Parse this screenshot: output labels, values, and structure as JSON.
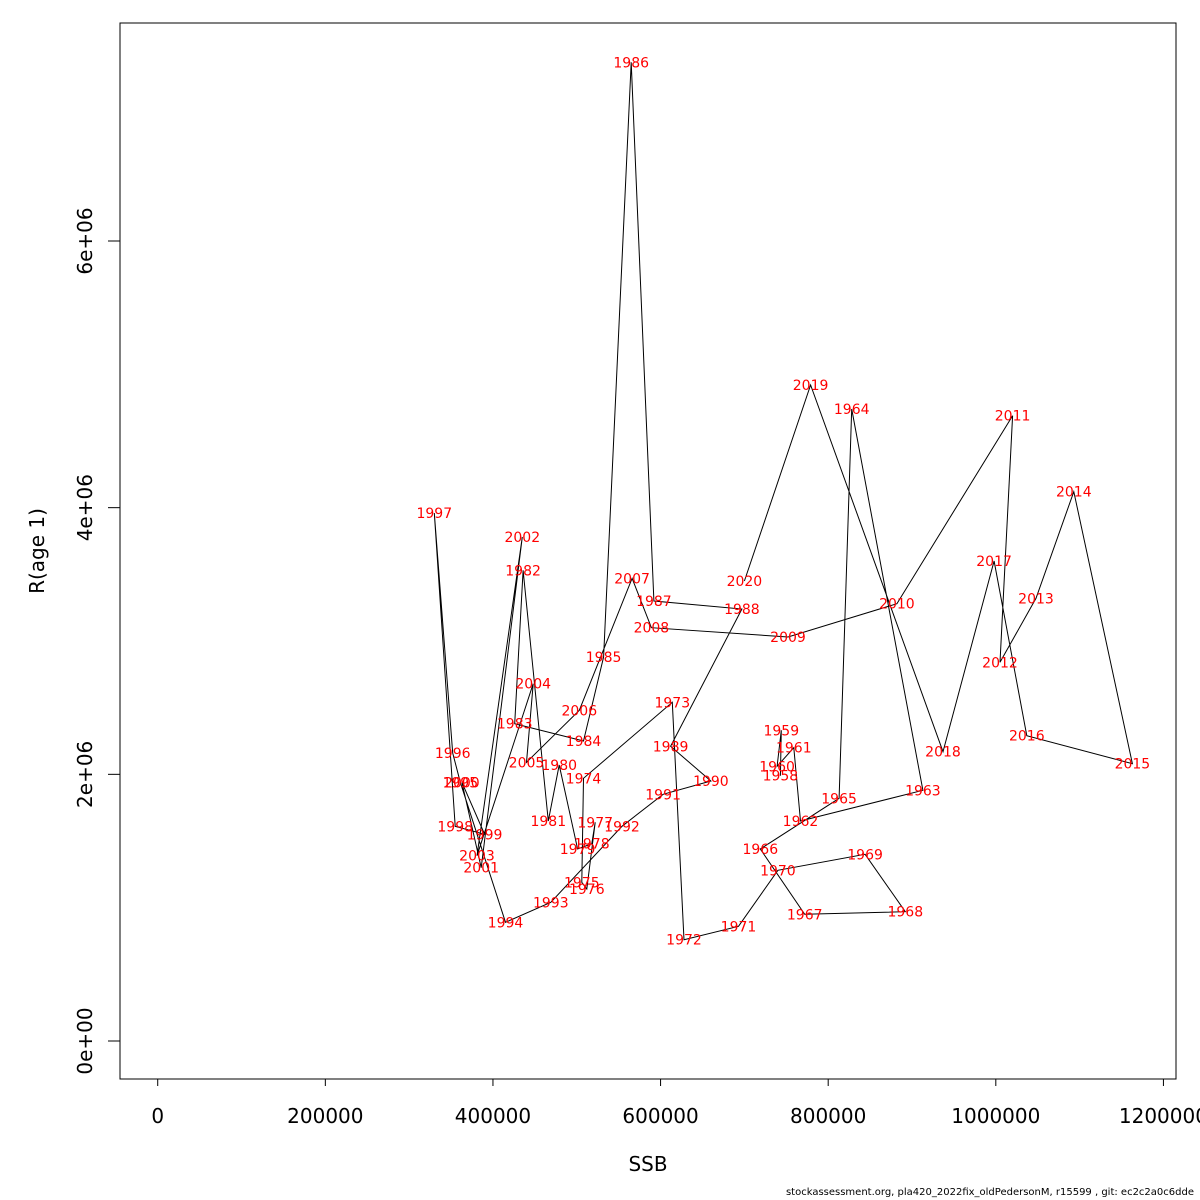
{
  "chart_data": {
    "type": "line",
    "title": "",
    "xlabel": "SSB",
    "ylabel": "R(age 1)",
    "xlim": [
      -45000,
      1215000
    ],
    "ylim": [
      -285000,
      7635000
    ],
    "x_ticks": [
      {
        "value": 0,
        "label": "0"
      },
      {
        "value": 200000,
        "label": "200000"
      },
      {
        "value": 400000,
        "label": "400000"
      },
      {
        "value": 600000,
        "label": "600000"
      },
      {
        "value": 800000,
        "label": "800000"
      },
      {
        "value": 1000000,
        "label": "1000000"
      },
      {
        "value": 1200000,
        "label": "1200000"
      }
    ],
    "y_ticks": [
      {
        "value": 0,
        "label": "0e+00"
      },
      {
        "value": 2000000,
        "label": "2e+06"
      },
      {
        "value": 4000000,
        "label": "4e+06"
      },
      {
        "value": 6000000,
        "label": "6e+06"
      }
    ],
    "grid": false,
    "legend": "none",
    "line_color": "#000000",
    "label_color": "#ff0000",
    "points": [
      {
        "label": "1958",
        "x": 743000,
        "y": 1990000
      },
      {
        "label": "1959",
        "x": 744000,
        "y": 2330000
      },
      {
        "label": "1960",
        "x": 739000,
        "y": 2060000
      },
      {
        "label": "1961",
        "x": 759000,
        "y": 2200000
      },
      {
        "label": "1962",
        "x": 767000,
        "y": 1650000
      },
      {
        "label": "1963",
        "x": 913000,
        "y": 1880000
      },
      {
        "label": "1964",
        "x": 828000,
        "y": 4740000
      },
      {
        "label": "1965",
        "x": 813000,
        "y": 1820000
      },
      {
        "label": "1966",
        "x": 719000,
        "y": 1440000
      },
      {
        "label": "1967",
        "x": 772000,
        "y": 950000
      },
      {
        "label": "1968",
        "x": 892000,
        "y": 970000
      },
      {
        "label": "1969",
        "x": 844000,
        "y": 1400000
      },
      {
        "label": "1970",
        "x": 740000,
        "y": 1280000
      },
      {
        "label": "1971",
        "x": 693000,
        "y": 860000
      },
      {
        "label": "1972",
        "x": 628000,
        "y": 760000
      },
      {
        "label": "1973",
        "x": 614000,
        "y": 2540000
      },
      {
        "label": "1974",
        "x": 508000,
        "y": 1970000
      },
      {
        "label": "1975",
        "x": 506000,
        "y": 1190000
      },
      {
        "label": "1976",
        "x": 512000,
        "y": 1140000
      },
      {
        "label": "1977",
        "x": 522000,
        "y": 1640000
      },
      {
        "label": "1978",
        "x": 518000,
        "y": 1480000
      },
      {
        "label": "1979",
        "x": 501000,
        "y": 1440000
      },
      {
        "label": "1980",
        "x": 479000,
        "y": 2070000
      },
      {
        "label": "1981",
        "x": 466000,
        "y": 1650000
      },
      {
        "label": "1982",
        "x": 436000,
        "y": 3530000
      },
      {
        "label": "1983",
        "x": 426000,
        "y": 2380000
      },
      {
        "label": "1984",
        "x": 508000,
        "y": 2250000
      },
      {
        "label": "1985",
        "x": 532000,
        "y": 2880000
      },
      {
        "label": "1986",
        "x": 565000,
        "y": 7340000
      },
      {
        "label": "1987",
        "x": 592000,
        "y": 3300000
      },
      {
        "label": "1988",
        "x": 697000,
        "y": 3240000
      },
      {
        "label": "1989",
        "x": 612000,
        "y": 2210000
      },
      {
        "label": "1990",
        "x": 660000,
        "y": 1950000
      },
      {
        "label": "1991",
        "x": 603000,
        "y": 1850000
      },
      {
        "label": "1992",
        "x": 554000,
        "y": 1610000
      },
      {
        "label": "1993",
        "x": 469000,
        "y": 1040000
      },
      {
        "label": "1994",
        "x": 415000,
        "y": 890000
      },
      {
        "label": "1995",
        "x": 361000,
        "y": 1940000
      },
      {
        "label": "1996",
        "x": 352000,
        "y": 2160000
      },
      {
        "label": "1997",
        "x": 330000,
        "y": 3960000
      },
      {
        "label": "1998",
        "x": 355000,
        "y": 1610000
      },
      {
        "label": "1999",
        "x": 390000,
        "y": 1550000
      },
      {
        "label": "2000",
        "x": 363000,
        "y": 1940000
      },
      {
        "label": "2001",
        "x": 386000,
        "y": 1300000
      },
      {
        "label": "2002",
        "x": 435000,
        "y": 3780000
      },
      {
        "label": "2003",
        "x": 381000,
        "y": 1390000
      },
      {
        "label": "2004",
        "x": 448000,
        "y": 2680000
      },
      {
        "label": "2005",
        "x": 440000,
        "y": 2090000
      },
      {
        "label": "2006",
        "x": 503000,
        "y": 2480000
      },
      {
        "label": "2007",
        "x": 566000,
        "y": 3470000
      },
      {
        "label": "2008",
        "x": 589000,
        "y": 3100000
      },
      {
        "label": "2009",
        "x": 752000,
        "y": 3030000
      },
      {
        "label": "2010",
        "x": 882000,
        "y": 3280000
      },
      {
        "label": "2011",
        "x": 1020000,
        "y": 4690000
      },
      {
        "label": "2012",
        "x": 1005000,
        "y": 2840000
      },
      {
        "label": "2013",
        "x": 1048000,
        "y": 3320000
      },
      {
        "label": "2014",
        "x": 1093000,
        "y": 4120000
      },
      {
        "label": "2015",
        "x": 1163000,
        "y": 2080000
      },
      {
        "label": "2016",
        "x": 1037000,
        "y": 2290000
      },
      {
        "label": "2017",
        "x": 998000,
        "y": 3600000
      },
      {
        "label": "2018",
        "x": 937000,
        "y": 2170000
      },
      {
        "label": "2019",
        "x": 779000,
        "y": 4920000
      },
      {
        "label": "2020",
        "x": 700000,
        "y": 3450000
      }
    ]
  },
  "footer": {
    "text": "stockassessment.org, pla420_2022fix_oldPedersonM, r15599 , git: ec2c2a0c6dde"
  }
}
